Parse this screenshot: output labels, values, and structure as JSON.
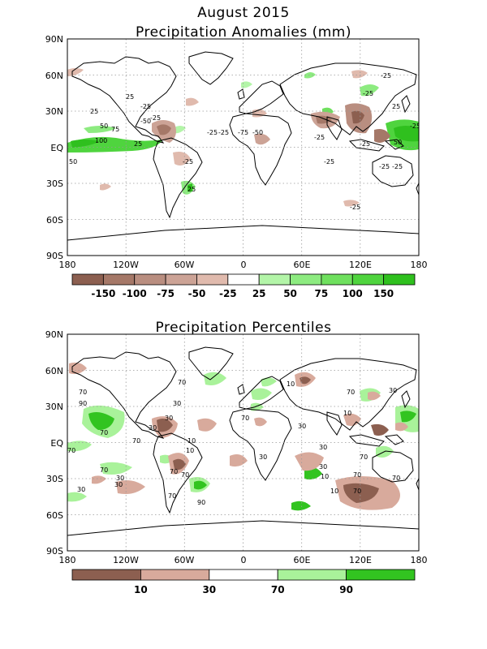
{
  "title": "August 2015",
  "panels": [
    {
      "title": "Precipitation Anomalies (mm)",
      "legend_labels": [
        "-150",
        "-100",
        "-75",
        "-50",
        "-25",
        "25",
        "50",
        "75",
        "100",
        "150"
      ],
      "legend_colors": [
        "#8c5f50",
        "#a57868",
        "#b98e80",
        "#cca396",
        "#e0baad",
        "#ffffff",
        "#b3f5a8",
        "#8deb80",
        "#6fe05e",
        "#4fd43e",
        "#2fc01e"
      ],
      "contour_labels": [
        "-25",
        "-25",
        "-25",
        "-25",
        "-25",
        "-25",
        "-25",
        "-25",
        "-25",
        "-25",
        "25",
        "25",
        "25",
        "25",
        "25",
        "50",
        "50",
        "75",
        "100",
        "50",
        "-50",
        "-75",
        "-25",
        "-50",
        "-25",
        "-25",
        "-25"
      ]
    },
    {
      "title": "Precipitation Percentiles",
      "legend_labels": [
        "10",
        "30",
        "70",
        "90"
      ],
      "legend_colors": [
        "#8c5f50",
        "#d8aa9c",
        "#ffffff",
        "#a9f29a",
        "#32c420"
      ],
      "contour_labels": [
        "70",
        "70",
        "10",
        "30",
        "90",
        "70",
        "70",
        "30",
        "30",
        "10",
        "70",
        "70",
        "70",
        "30",
        "70",
        "30",
        "10",
        "30",
        "70",
        "30",
        "30",
        "30",
        "10",
        "70",
        "70",
        "10",
        "30",
        "70",
        "70",
        "70",
        "90",
        "10",
        "70",
        "30"
      ]
    }
  ],
  "axes": {
    "x_ticks": [
      "180",
      "120W",
      "60W",
      "0",
      "60E",
      "120E",
      "180"
    ],
    "y_ticks": [
      "90N",
      "60N",
      "30N",
      "EQ",
      "30S",
      "60S",
      "90S"
    ]
  },
  "map_features": {
    "land_outline": "world coastlines",
    "grid": "dotted at 30° latitude / 60° longitude"
  },
  "colors": {
    "dry_strong": "#8c5f50",
    "dry_light": "#e0baad",
    "wet_light": "#b3f5a8",
    "wet_strong": "#2fc01e"
  }
}
